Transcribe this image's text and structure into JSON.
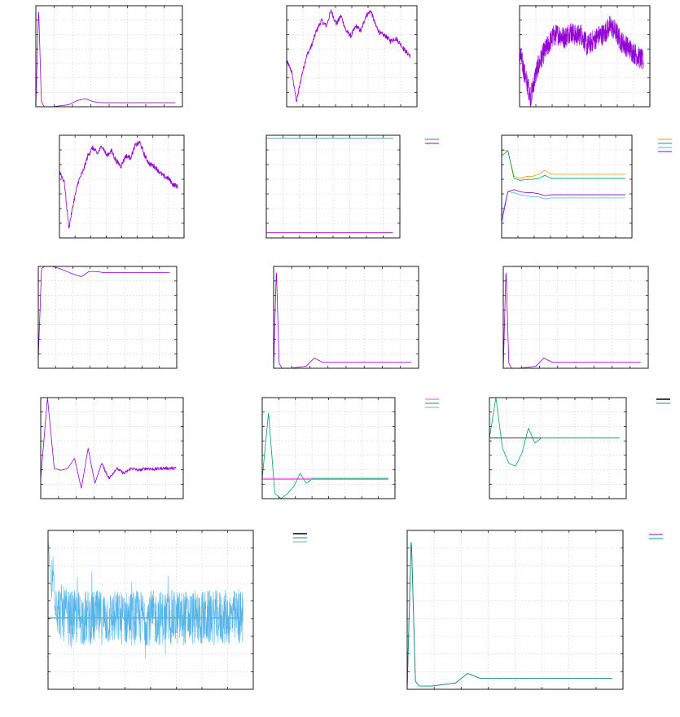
{
  "chart_data": [
    {
      "type": "line",
      "title": "",
      "xlabel": "",
      "ylabel": "",
      "grid": true,
      "legend": "none",
      "xlim": [
        0,
        300
      ],
      "ylim": [
        0,
        1
      ],
      "series": [
        {
          "color": "#9400d3",
          "style": "spike_tail",
          "values": [
            0.0,
            0.98,
            0.05,
            0.0,
            0.0,
            0.01,
            0.02,
            0.06,
            0.08,
            0.05,
            0.04,
            0.04,
            0.04,
            0.04,
            0.04,
            0.04,
            0.04,
            0.04,
            0.04,
            0.04
          ]
        }
      ]
    },
    {
      "type": "line",
      "title": "",
      "xlabel": "",
      "ylabel": "",
      "grid": true,
      "legend": "none",
      "xlim": [
        0,
        300
      ],
      "ylim": [
        0,
        1
      ],
      "series": [
        {
          "color": "#9400d3",
          "style": "wander",
          "values": [
            0.45,
            0.35,
            0.05,
            0.3,
            0.5,
            0.6,
            0.75,
            0.85,
            0.8,
            0.95,
            0.82,
            0.9,
            0.75,
            0.7,
            0.8,
            0.75,
            0.9,
            0.95,
            0.8,
            0.72,
            0.7,
            0.65,
            0.68,
            0.62,
            0.55,
            0.5
          ]
        }
      ]
    },
    {
      "type": "line",
      "title": "",
      "xlabel": "",
      "ylabel": "",
      "grid": true,
      "legend": "none",
      "xlim": [
        0,
        300
      ],
      "ylim": [
        0,
        1
      ],
      "series": [
        {
          "color": "#9400d3",
          "style": "noisy",
          "values": [
            0.55,
            0.3,
            0.1,
            0.35,
            0.5,
            0.6,
            0.7,
            0.72,
            0.68,
            0.75,
            0.7,
            0.72,
            0.6,
            0.65,
            0.7,
            0.72,
            0.8,
            0.75,
            0.65,
            0.6,
            0.55,
            0.5,
            0.45
          ]
        }
      ]
    },
    {
      "type": "line",
      "title": "",
      "xlabel": "",
      "ylabel": "",
      "grid": true,
      "legend": "none",
      "xlim": [
        0,
        300
      ],
      "ylim": [
        0,
        1
      ],
      "series": [
        {
          "color": "#9400d3",
          "style": "wander",
          "values": [
            0.65,
            0.55,
            0.1,
            0.35,
            0.55,
            0.65,
            0.8,
            0.88,
            0.82,
            0.9,
            0.8,
            0.85,
            0.75,
            0.7,
            0.8,
            0.78,
            0.9,
            0.93,
            0.8,
            0.72,
            0.7,
            0.65,
            0.6,
            0.58,
            0.52,
            0.5
          ]
        }
      ]
    },
    {
      "type": "line",
      "title": "",
      "xlabel": "",
      "ylabel": "",
      "grid": true,
      "legend": "top-right-outside",
      "xlim": [
        0,
        300
      ],
      "ylim": [
        0,
        1
      ],
      "series": [
        {
          "color": "#009e73",
          "style": "flat",
          "values": [
            0.97,
            0.97
          ]
        },
        {
          "color": "#9400d3",
          "style": "flat",
          "values": [
            0.05,
            0.05
          ]
        }
      ]
    },
    {
      "type": "line",
      "title": "",
      "xlabel": "",
      "ylabel": "",
      "grid": true,
      "legend": "top-right-outside",
      "xlim": [
        0,
        300
      ],
      "ylim": [
        0,
        1
      ],
      "series": [
        {
          "color": "#e69f00",
          "style": "damped",
          "values": [
            0.85,
            0.85,
            0.6,
            0.58,
            0.6,
            0.6,
            0.62,
            0.66,
            0.62,
            0.62,
            0.62,
            0.62,
            0.62,
            0.62,
            0.62,
            0.62,
            0.62,
            0.62,
            0.62,
            0.62
          ]
        },
        {
          "color": "#009e73",
          "style": "damped",
          "values": [
            0.8,
            0.85,
            0.58,
            0.56,
            0.57,
            0.57,
            0.58,
            0.61,
            0.58,
            0.58,
            0.58,
            0.58,
            0.58,
            0.58,
            0.58,
            0.58,
            0.58,
            0.58,
            0.58,
            0.58
          ]
        },
        {
          "color": "#56b4e9",
          "style": "damped",
          "values": [
            0.2,
            0.45,
            0.44,
            0.42,
            0.41,
            0.4,
            0.4,
            0.38,
            0.39,
            0.39,
            0.39,
            0.39,
            0.39,
            0.39,
            0.39,
            0.39,
            0.39,
            0.39,
            0.39,
            0.39
          ]
        },
        {
          "color": "#9400d3",
          "style": "damped",
          "values": [
            0.15,
            0.45,
            0.47,
            0.45,
            0.44,
            0.44,
            0.43,
            0.41,
            0.42,
            0.42,
            0.42,
            0.42,
            0.42,
            0.42,
            0.42,
            0.42,
            0.42,
            0.42,
            0.42,
            0.42
          ]
        }
      ]
    },
    {
      "type": "line",
      "title": "",
      "xlabel": "",
      "ylabel": "",
      "grid": true,
      "legend": "none",
      "xlim": [
        0,
        300
      ],
      "ylim": [
        0,
        1
      ],
      "series": [
        {
          "color": "#9400d3",
          "style": "rise",
          "values": [
            0.1,
            0.98,
            1.0,
            1.0,
            0.98,
            0.95,
            0.92,
            0.9,
            0.95,
            0.95,
            0.94,
            0.94,
            0.94,
            0.94,
            0.94,
            0.94,
            0.94,
            0.94,
            0.94,
            0.94
          ]
        }
      ]
    },
    {
      "type": "line",
      "title": "",
      "xlabel": "",
      "ylabel": "",
      "grid": true,
      "legend": "none",
      "xlim": [
        0,
        300
      ],
      "ylim": [
        0,
        1
      ],
      "series": [
        {
          "color": "#9400d3",
          "style": "spike_tail",
          "values": [
            0.0,
            0.98,
            0.05,
            0.0,
            0.0,
            0.01,
            0.02,
            0.1,
            0.06,
            0.06,
            0.06,
            0.06,
            0.06,
            0.06,
            0.06,
            0.06,
            0.06,
            0.06,
            0.06,
            0.06
          ]
        }
      ]
    },
    {
      "type": "line",
      "title": "",
      "xlabel": "",
      "ylabel": "",
      "grid": true,
      "legend": "none",
      "xlim": [
        0,
        300
      ],
      "ylim": [
        0,
        1
      ],
      "series": [
        {
          "color": "#9400d3",
          "style": "spike_tail",
          "values": [
            0.0,
            0.98,
            0.05,
            0.0,
            0.0,
            0.01,
            0.02,
            0.1,
            0.06,
            0.06,
            0.06,
            0.06,
            0.06,
            0.06,
            0.06,
            0.06,
            0.06,
            0.06,
            0.06,
            0.06
          ]
        }
      ]
    },
    {
      "type": "line",
      "title": "",
      "xlabel": "",
      "ylabel": "",
      "grid": true,
      "legend": "none",
      "xlim": [
        0,
        300
      ],
      "ylim": [
        0,
        1
      ],
      "series": [
        {
          "color": "#9400d3",
          "style": "oscillate",
          "values": [
            0.2,
            1.0,
            0.3,
            0.28,
            0.3,
            0.4,
            0.1,
            0.5,
            0.15,
            0.35,
            0.2,
            0.3,
            0.25,
            0.3,
            0.28,
            0.3,
            0.29,
            0.3,
            0.3,
            0.3
          ]
        }
      ]
    },
    {
      "type": "line",
      "title": "",
      "xlabel": "",
      "ylabel": "",
      "grid": true,
      "legend": "top-right-outside",
      "xlim": [
        0,
        300
      ],
      "ylim": [
        0,
        1
      ],
      "series": [
        {
          "color": "#ff40ff",
          "style": "flat",
          "values": [
            0.2,
            0.2
          ]
        },
        {
          "color": "#009e73",
          "style": "damped",
          "values": [
            0.2,
            0.85,
            0.05,
            0.0,
            0.05,
            0.12,
            0.25,
            0.15,
            0.2,
            0.2,
            0.2,
            0.2,
            0.2,
            0.2,
            0.2,
            0.2,
            0.2,
            0.2,
            0.2,
            0.2
          ]
        },
        {
          "color": "#56b4e9",
          "style": "flat",
          "values": [
            0.19,
            0.19
          ]
        }
      ]
    },
    {
      "type": "line",
      "title": "",
      "xlabel": "",
      "ylabel": "",
      "grid": true,
      "legend": "top-right-outside",
      "xlim": [
        0,
        300
      ],
      "ylim": [
        0,
        1
      ],
      "series": [
        {
          "color": "#000000",
          "style": "flat",
          "values": [
            0.6,
            0.6
          ]
        },
        {
          "color": "#009e73",
          "style": "damped",
          "values": [
            0.6,
            1.0,
            0.5,
            0.35,
            0.32,
            0.45,
            0.7,
            0.55,
            0.6,
            0.6,
            0.6,
            0.6,
            0.6,
            0.6,
            0.6,
            0.6,
            0.6,
            0.6,
            0.6,
            0.6
          ]
        }
      ]
    },
    {
      "type": "line",
      "title": "",
      "xlabel": "",
      "ylabel": "",
      "grid": true,
      "legend": "top-right-outside",
      "xlim": [
        0,
        300
      ],
      "ylim": [
        0,
        1
      ],
      "series": [
        {
          "color": "#000000",
          "style": "flat",
          "values": [
            0.45,
            0.45
          ]
        },
        {
          "color": "#009e73",
          "style": "flat",
          "values": [
            0.45,
            0.45
          ]
        },
        {
          "color": "#56b4e9",
          "style": "noise_band",
          "values": [
            0.9,
            0.5,
            0.45,
            0.45,
            0.45,
            0.45,
            0.45,
            0.45,
            0.45,
            0.45,
            0.45,
            0.45,
            0.45,
            0.45,
            0.45,
            0.45,
            0.45,
            0.45,
            0.45,
            0.45
          ]
        }
      ]
    },
    {
      "type": "line",
      "title": "",
      "xlabel": "",
      "ylabel": "",
      "grid": true,
      "legend": "top-right-outside",
      "xlim": [
        0,
        300
      ],
      "ylim": [
        0,
        1
      ],
      "series": [
        {
          "color": "#9400d3",
          "style": "spike_tail",
          "values": [
            0.0,
            0.97,
            0.05,
            0.02,
            0.02,
            0.03,
            0.04,
            0.1,
            0.07,
            0.07,
            0.07,
            0.07,
            0.07,
            0.07,
            0.07,
            0.07,
            0.07,
            0.07,
            0.07,
            0.07
          ]
        },
        {
          "color": "#009e73",
          "style": "spike_tail",
          "values": [
            0.0,
            0.97,
            0.05,
            0.02,
            0.02,
            0.03,
            0.04,
            0.1,
            0.07,
            0.07,
            0.07,
            0.07,
            0.07,
            0.07,
            0.07,
            0.07,
            0.07,
            0.07,
            0.07,
            0.07
          ]
        }
      ]
    }
  ]
}
